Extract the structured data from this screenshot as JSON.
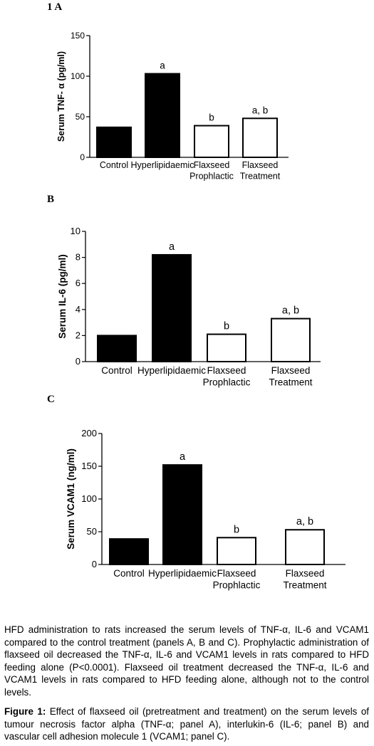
{
  "panels": [
    {
      "label": "1 A",
      "chart_data": {
        "type": "bar",
        "categories": [
          [
            "Control"
          ],
          [
            "Hyperlipidaemic"
          ],
          [
            "Flaxseed",
            "Prophlactic"
          ],
          [
            "Flaxseed",
            "Treatment"
          ]
        ],
        "values": [
          37,
          103,
          39,
          48
        ],
        "bar_styles": [
          "filled",
          "filled",
          "open",
          "open"
        ],
        "annotations": [
          "",
          "a",
          "b",
          "a, b"
        ],
        "ylabel": "Serum TNF- α (pg/ml)",
        "ylim": [
          0,
          150
        ],
        "yticks": [
          0,
          50,
          100,
          150
        ],
        "ytick_labels": [
          "0",
          "50",
          "100",
          "150"
        ],
        "grid": false
      }
    },
    {
      "label": "B",
      "chart_data": {
        "type": "bar",
        "categories": [
          [
            "Control"
          ],
          [
            "Hyperlipidaemic"
          ],
          [
            "Flaxseed",
            "Prophlactic"
          ],
          [
            "Flaxseed",
            "Treatment"
          ]
        ],
        "values": [
          2.0,
          8.2,
          2.1,
          3.3
        ],
        "bar_styles": [
          "filled",
          "filled",
          "open",
          "open"
        ],
        "annotations": [
          "",
          "a",
          "b",
          "a, b"
        ],
        "ylabel": "Serum IL-6 (pg/ml)",
        "ylim": [
          0,
          10
        ],
        "yticks": [
          0,
          2,
          4,
          6,
          8,
          10
        ],
        "ytick_labels": [
          "0",
          "2",
          "4",
          "6",
          "8",
          "10"
        ],
        "grid": false
      }
    },
    {
      "label": "C",
      "chart_data": {
        "type": "bar",
        "categories": [
          [
            "Control"
          ],
          [
            "Hyperlipidaemic"
          ],
          [
            "Flaxseed",
            "Prophlactic"
          ],
          [
            "Flaxseed",
            "Treatment"
          ]
        ],
        "values": [
          39,
          152,
          41,
          53
        ],
        "bar_styles": [
          "filled",
          "filled",
          "open",
          "open"
        ],
        "annotations": [
          "",
          "a",
          "b",
          "a, b"
        ],
        "ylabel": "Serum VCAM1 (ng/ml)",
        "ylim": [
          0,
          200
        ],
        "yticks": [
          0,
          50,
          100,
          150,
          200
        ],
        "ytick_labels": [
          "0",
          "50",
          "100",
          "150",
          "200"
        ],
        "grid": false
      }
    }
  ],
  "body_text": "HFD administration to rats increased the serum levels of TNF-α, IL-6 and VCAM1 compared to the control treatment (panels A, B and C). Prophylactic administration of flaxseed oil decreased the TNF-α, IL-6 and VCAM1 levels in rats compared to HFD feeding alone (P<0.0001). Flaxseed oil treatment decreased the TNF-α, IL-6 and VCAM1 levels in rats compared to HFD feeding alone, although not to the control levels.",
  "caption": {
    "label": "Figure 1:",
    "text": " Effect of flaxseed oil (pretreatment and treatment) on the serum levels of tumour necrosis factor alpha (TNF-α; panel A), interlukin-6 (IL-6; panel B) and vascular cell adhesion molecule 1 (VCAM1; panel C)."
  }
}
